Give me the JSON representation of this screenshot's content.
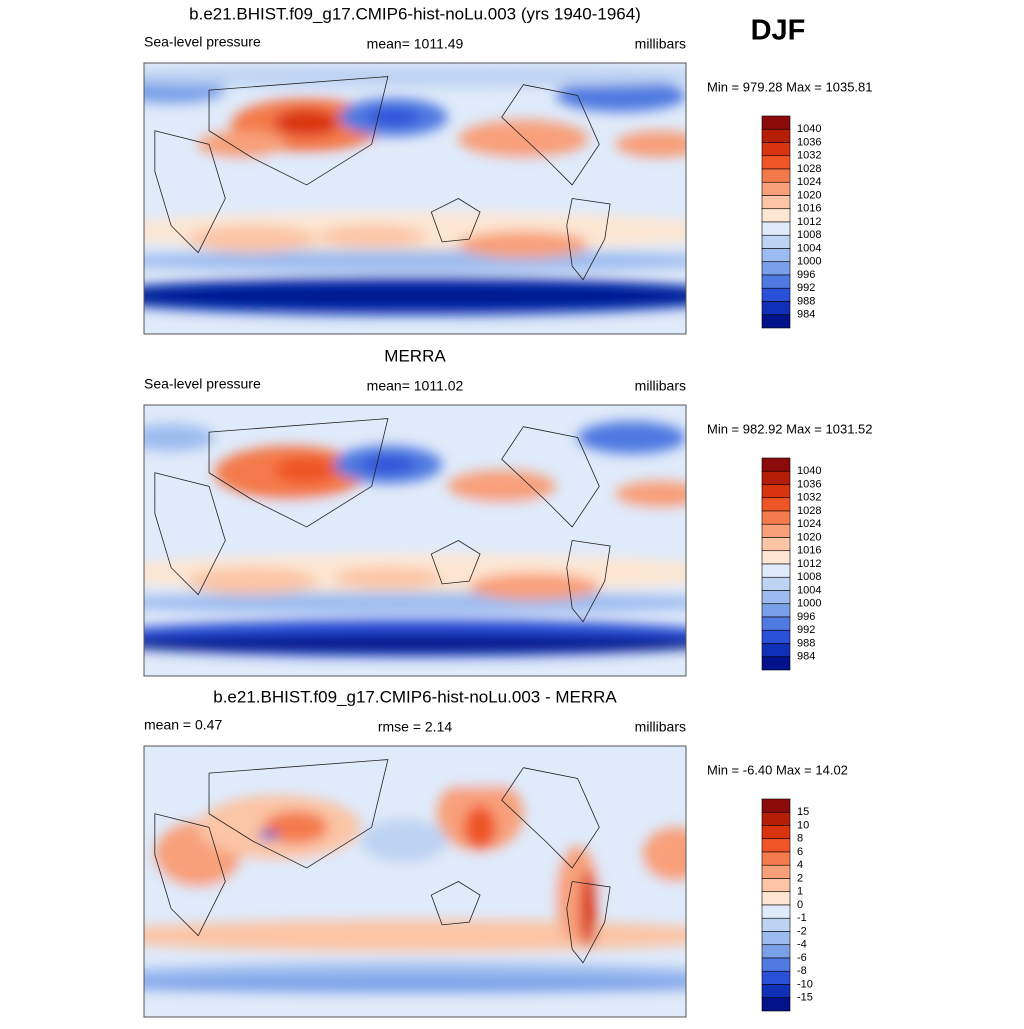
{
  "header": {
    "season": "DJF"
  },
  "panels": [
    {
      "title": "b.e21.BHIST.f09_g17.CMIP6-hist-noLu.003 (yrs 1940-1964)",
      "left_label": "Sea-level pressure",
      "center_label": "mean= 1011.49",
      "right_label": "millibars",
      "stats": "Min = 979.28 Max = 1035.81",
      "colorbar": {
        "labels": [
          1040,
          1036,
          1032,
          1028,
          1024,
          1020,
          1016,
          1012,
          1008,
          1004,
          1000,
          996,
          992,
          988,
          984
        ],
        "colors": [
          "#8b0a0a",
          "#b51e05",
          "#d9340f",
          "#ef5526",
          "#f47a4b",
          "#f8a07a",
          "#fbc5a6",
          "#fde6d2",
          "#dfeafa",
          "#bdd3f3",
          "#9cbcef",
          "#7aa0e9",
          "#5079e1",
          "#2b50d8",
          "#1030b8",
          "#01128a"
        ]
      }
    },
    {
      "title": "MERRA",
      "left_label": "Sea-level pressure",
      "center_label": "mean= 1011.02",
      "right_label": "millibars",
      "stats": "Min = 982.92 Max = 1031.52",
      "colorbar": {
        "labels": [
          1040,
          1036,
          1032,
          1028,
          1024,
          1020,
          1016,
          1012,
          1008,
          1004,
          1000,
          996,
          992,
          988,
          984
        ],
        "colors": [
          "#8b0a0a",
          "#b51e05",
          "#d9340f",
          "#ef5526",
          "#f47a4b",
          "#f8a07a",
          "#fbc5a6",
          "#fde6d2",
          "#dfeafa",
          "#bdd3f3",
          "#9cbcef",
          "#7aa0e9",
          "#5079e1",
          "#2b50d8",
          "#1030b8",
          "#01128a"
        ]
      }
    },
    {
      "title": "b.e21.BHIST.f09_g17.CMIP6-hist-noLu.003 - MERRA",
      "left_label": "mean =   0.47",
      "center_label": "rmse =   2.14",
      "right_label": "millibars",
      "stats": "Min =  -6.40 Max =  14.02",
      "colorbar": {
        "labels": [
          15,
          10,
          8,
          6,
          4,
          2,
          1,
          0,
          -1,
          -2,
          -4,
          -6,
          -8,
          -10,
          -15
        ],
        "colors": [
          "#8b0a0a",
          "#b51e05",
          "#d9340f",
          "#ef5526",
          "#f47a4b",
          "#f8a07a",
          "#fbc5a6",
          "#fde6d2",
          "#dfeafa",
          "#bdd3f3",
          "#9cbcef",
          "#7aa0e9",
          "#5079e1",
          "#2b50d8",
          "#1030b8",
          "#01128a"
        ]
      }
    }
  ]
}
